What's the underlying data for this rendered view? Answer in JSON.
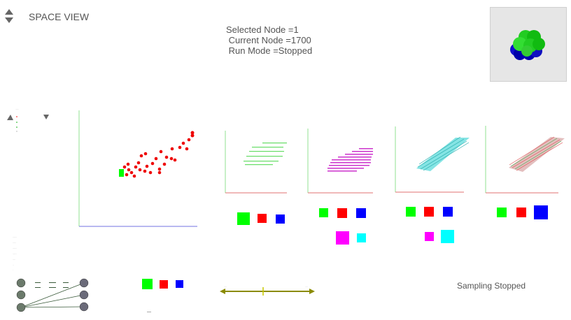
{
  "header": {
    "title": "SPACE VIEW"
  },
  "status": {
    "selected_node": "Selected Node =1",
    "current_node": " Current Node =1700",
    "run_mode": " Run Mode =Stopped"
  },
  "footer": {
    "sampling_status": "Sampling Stopped"
  },
  "colors": {
    "green": "#00ff00",
    "red": "#ff0000",
    "blue": "#0000ff",
    "magenta": "#ff00ff",
    "cyan": "#00ffff",
    "olive": "#8b8b00",
    "node_gray": "#6b7a6b",
    "axis_green": "#90e090",
    "axis_red": "#e07070",
    "axis_blue": "#7070e0"
  },
  "icons": [
    "scroll-arrows-icon",
    "triangle-left-icon",
    "triangle-down-icon",
    "sphere-cluster-icon"
  ]
}
